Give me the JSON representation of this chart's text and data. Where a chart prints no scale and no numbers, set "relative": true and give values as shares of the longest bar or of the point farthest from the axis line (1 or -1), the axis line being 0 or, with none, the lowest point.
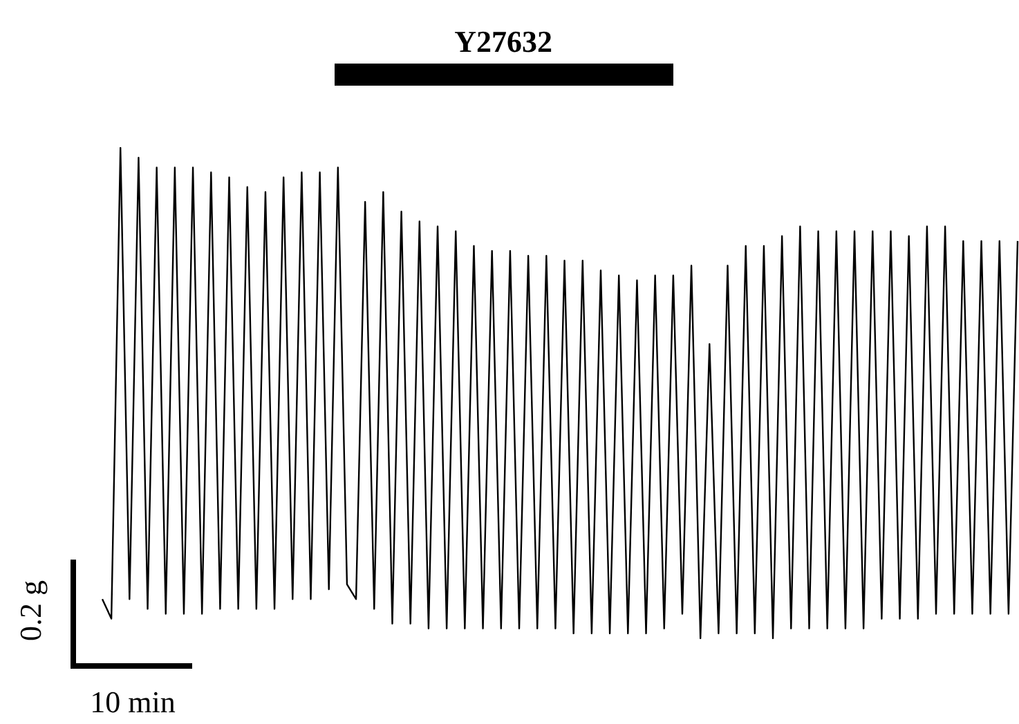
{
  "chart_data": {
    "type": "line",
    "relative": true,
    "grid": false,
    "categories": [
      null,
      null,
      null,
      null,
      null,
      null,
      null,
      null,
      null,
      null,
      null,
      null,
      null,
      null,
      null,
      null,
      null,
      null,
      null,
      null,
      null,
      null,
      null,
      null,
      null,
      null,
      null,
      null,
      null,
      null,
      null,
      null,
      null,
      null,
      null,
      null,
      null,
      null,
      null,
      null,
      null,
      null,
      null,
      null,
      null,
      null,
      null,
      null,
      null,
      null,
      null,
      null,
      null,
      null,
      null,
      null,
      null,
      null,
      null,
      null,
      null,
      null,
      null,
      null,
      null,
      null,
      null,
      null,
      null,
      null,
      null,
      null,
      null,
      null,
      null,
      null,
      null,
      null,
      null,
      null,
      null,
      null,
      null,
      null,
      null,
      null,
      null,
      null,
      null,
      null,
      null,
      null,
      null,
      null,
      null,
      null,
      null,
      null,
      null,
      null,
      null,
      null
    ],
    "series": [
      {
        "color": "#000000",
        "values": [
          0.08,
          0.04,
          1.0,
          0.08,
          0.98,
          0.06,
          0.96,
          0.05,
          0.96,
          0.05,
          0.96,
          0.05,
          0.95,
          0.06,
          0.94,
          0.06,
          0.92,
          0.06,
          0.91,
          0.06,
          0.94,
          0.08,
          0.95,
          0.08,
          0.95,
          0.1,
          0.96,
          0.11,
          0.08,
          0.89,
          0.06,
          0.91,
          0.03,
          0.87,
          0.03,
          0.85,
          0.02,
          0.84,
          0.02,
          0.83,
          0.02,
          0.8,
          0.02,
          0.79,
          0.02,
          0.79,
          0.02,
          0.78,
          0.02,
          0.78,
          0.02,
          0.77,
          0.01,
          0.77,
          0.01,
          0.75,
          0.01,
          0.74,
          0.01,
          0.73,
          0.01,
          0.74,
          0.02,
          0.74,
          0.05,
          0.76,
          0.0,
          0.6,
          0.01,
          0.76,
          0.01,
          0.8,
          0.01,
          0.8,
          0.0,
          0.82,
          0.02,
          0.84,
          0.02,
          0.83,
          0.02,
          0.83,
          0.02,
          0.83,
          0.02,
          0.83,
          0.04,
          0.83,
          0.04,
          0.82,
          0.04,
          0.84,
          0.05,
          0.84,
          0.05,
          0.81,
          0.05,
          0.81,
          0.05,
          0.81,
          0.05,
          0.81
        ]
      }
    ],
    "annotations": [
      "Y27632",
      "0.2 g",
      "10 min"
    ]
  }
}
